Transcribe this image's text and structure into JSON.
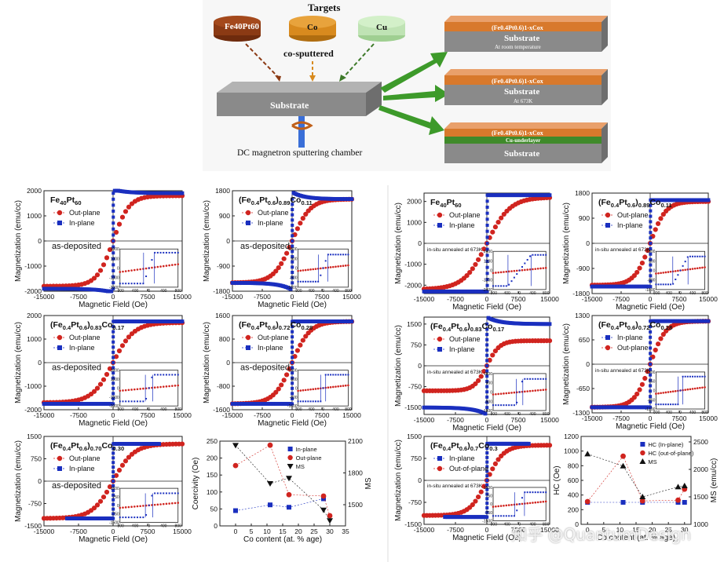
{
  "schematic": {
    "targets_title": "Targets",
    "target_fept": "Fe40Pt60",
    "target_co": "Co",
    "target_cu": "Cu",
    "cosputtered": "co-sputtered",
    "substrate": "Substrate",
    "chamber": "DC magnetron sputtering chamber",
    "stack1_film": "(Fe0.4Pt0.6)1-xCox",
    "stack1_sub": "Substrate",
    "stack1_note": "At room temperature",
    "stack2_film": "(Fe0.4Pt0.6)1-xCox",
    "stack2_sub": "Substrate",
    "stack2_note": "At 673K",
    "stack3_film": "(Fe0.4Pt0.6)1-xCox",
    "stack3_cu": "Cu-underlayer",
    "stack3_sub": "Substrate",
    "colors": {
      "fept": "#8b3a14",
      "co": "#d88a1e",
      "cu": "#bfe3b4",
      "film": "#d8792c",
      "substrate": "#8a8a8a",
      "cu_layer": "#3f8a2a",
      "arrow": "#3d9a2a"
    }
  },
  "watermark": "知乎 @QuantumDesign",
  "chart_data": [
    {
      "type": "scatter",
      "id": "L1",
      "title": "Fe40Pt60",
      "annotation": "as-deposited",
      "xlabel": "Magnetic Field (Oe)",
      "ylabel": "Magnetization (emu/cc)",
      "xlim": [
        -15000,
        15000
      ],
      "ylim": [
        -2000,
        2000
      ],
      "xticks": [
        -15000,
        -7500,
        0,
        7500,
        15000
      ],
      "yticks": [
        -2000,
        -1000,
        0,
        1000,
        2000
      ],
      "legend": [
        "Out-plane",
        "In-plane"
      ],
      "ms": 1800,
      "hc_out": 3500,
      "hc_in": 150,
      "in_sat": 1900,
      "in_overshoot": 2050,
      "inset": {
        "xlim": [
          -800,
          800
        ],
        "ylim": [
          -2000,
          2000
        ],
        "xticks": [
          -800,
          -400,
          0,
          400,
          800
        ],
        "yticks": [
          -2000,
          -1000,
          0,
          1000,
          2000
        ]
      }
    },
    {
      "type": "scatter",
      "id": "L2",
      "title": "(Fe0.4Pt0.6)0.89Co0.11",
      "annotation": "as-deposited",
      "xlabel": "Magnetic Field (Oe)",
      "ylabel": "Magnetization (emu/cc)",
      "xlim": [
        -15000,
        15000
      ],
      "ylim": [
        -1800,
        1800
      ],
      "xticks": [
        -15000,
        -7500,
        0,
        7500,
        15000
      ],
      "yticks": [
        -1800,
        -900,
        0,
        900,
        1800
      ],
      "legend": [
        "Out-plane",
        "In-plane"
      ],
      "ms": 1500,
      "hc_out": 4500,
      "hc_in": 150,
      "in_sat": 1500,
      "in_overshoot": 1750,
      "inset": {
        "xlim": [
          -800,
          800
        ],
        "ylim": [
          -1800,
          1800
        ],
        "xticks": [
          -800,
          -400,
          0,
          400,
          800
        ],
        "yticks": [
          -1800,
          -900,
          0,
          900,
          1800
        ]
      }
    },
    {
      "type": "scatter",
      "id": "L3",
      "title": "(Fe0.4Pt0.6)0.83Co0.17",
      "annotation": "as-deposited",
      "xlabel": "Magnetic Field (Oe)",
      "ylabel": "Magnetization (emu/cc)",
      "xlim": [
        -15000,
        15000
      ],
      "ylim": [
        -2000,
        2000
      ],
      "xticks": [
        -15000,
        -7500,
        0,
        7500,
        15000
      ],
      "yticks": [
        -2000,
        -1000,
        0,
        1000,
        2000
      ],
      "legend": [
        "Out-plane",
        "In-plane"
      ],
      "ms": 1700,
      "hc_out": 4500,
      "hc_in": 100,
      "in_sat": 1750,
      "in_overshoot": 1750,
      "inset": {
        "xlim": [
          -800,
          800
        ],
        "ylim": [
          -2000,
          2000
        ],
        "xticks": [
          -800,
          -400,
          0,
          400,
          800
        ],
        "yticks": [
          -2000,
          -1000,
          0,
          1000,
          2000
        ]
      }
    },
    {
      "type": "scatter",
      "id": "L4",
      "title": "(Fe0.4Pt0.6)0.72Co0.28",
      "annotation": "as-deposited",
      "xlabel": "Magnetic Field (Oe)",
      "ylabel": "Magnetization (emu/cc)",
      "xlim": [
        -15000,
        15000
      ],
      "ylim": [
        -1600,
        1600
      ],
      "xticks": [
        -15000,
        -7500,
        0,
        7500,
        15000
      ],
      "yticks": [
        -1600,
        -800,
        0,
        800,
        1600
      ],
      "legend": [
        "Out-plane",
        "In-plane"
      ],
      "ms": 1400,
      "hc_out": 4500,
      "hc_in": 80,
      "in_sat": 1400,
      "in_overshoot": 1400,
      "inset": {
        "xlim": [
          -800,
          800
        ],
        "ylim": [
          -1600,
          1600
        ],
        "xticks": [
          -800,
          -400,
          0,
          400,
          800
        ],
        "yticks": [
          -1600,
          -800,
          0,
          800,
          1600
        ]
      }
    },
    {
      "type": "scatter",
      "id": "L5",
      "title": "(Fe0.4Pt0.6)0.70Co0.30",
      "annotation": "as-deposited",
      "xlabel": "Magnetic Field (Oe)",
      "ylabel": "Magnetization (emu/cc)",
      "xlim": [
        -15000,
        15000
      ],
      "ylim": [
        -1500,
        1500
      ],
      "xticks": [
        -15000,
        -7500,
        0,
        7500,
        15000
      ],
      "yticks": [
        -1500,
        -750,
        0,
        750,
        1500
      ],
      "legend": [
        "Out-plane",
        "In-plane"
      ],
      "ms": 1250,
      "hc_out": 4500,
      "hc_in": 100,
      "in_sat": 1250,
      "in_overshoot": 1250,
      "in_xmax": 10000,
      "inset": {
        "xlim": [
          -800,
          800
        ],
        "ylim": [
          -1500,
          1500
        ],
        "xticks": [
          -800,
          -400,
          0,
          400,
          800
        ],
        "yticks": [
          -1500,
          -750,
          0,
          750,
          1500
        ]
      }
    },
    {
      "type": "line",
      "id": "L6",
      "xlabel": "Co content (at. % age)",
      "ylabel": "Coercivity (Oe)",
      "y2label": "MS",
      "xlim": [
        -5,
        35
      ],
      "ylim": [
        0,
        250
      ],
      "y2lim": [
        1300,
        2100
      ],
      "xticks": [
        0,
        5,
        10,
        15,
        20,
        25,
        30,
        35
      ],
      "yticks": [
        0,
        50,
        100,
        150,
        200,
        250
      ],
      "y2ticks": [
        1500,
        1800,
        2100
      ],
      "series": [
        {
          "name": "In-plane",
          "x": [
            0,
            11,
            17,
            28
          ],
          "y": [
            45,
            62,
            55,
            80
          ],
          "axis": "left",
          "color": "#1a2fbf",
          "marker": "square"
        },
        {
          "name": "Out-plane",
          "x": [
            0,
            11,
            17,
            28,
            30
          ],
          "y": [
            178,
            238,
            92,
            88,
            30
          ],
          "axis": "left",
          "color": "#d0241f",
          "marker": "circle"
        },
        {
          "name": "MS",
          "x": [
            0,
            11,
            17,
            28,
            30
          ],
          "y": [
            2060,
            1700,
            1750,
            1450,
            1350
          ],
          "axis": "right",
          "color": "#111",
          "marker": "triangle-down"
        }
      ],
      "legend_position": "top-right"
    },
    {
      "type": "scatter",
      "id": "R1",
      "title": "Fe40Pt60",
      "annotation": "in-situ annealed at 673K",
      "xlabel": "Magnetic Field (Oe)",
      "ylabel": "Magnetization (emu/cc)",
      "xlim": [
        -15000,
        15000
      ],
      "ylim": [
        -2400,
        2400
      ],
      "xticks": [
        -15000,
        -7500,
        0,
        7500,
        15000
      ],
      "yticks": [
        -2000,
        -1000,
        0,
        1000,
        2000
      ],
      "legend": [
        "Out-plane",
        "In-plane"
      ],
      "ms": 2200,
      "hc_out": 5500,
      "hc_in": 350,
      "in_sat": 2300,
      "in_overshoot": 2300,
      "inset": {
        "xlim": [
          -800,
          800
        ],
        "ylim": [
          -2400,
          2400
        ],
        "xticks": [
          -800,
          -400,
          0,
          400,
          800
        ],
        "yticks": [
          -2400,
          -1200,
          0,
          1200,
          2400
        ]
      }
    },
    {
      "type": "scatter",
      "id": "R2",
      "title": "(Fe0.4Pt0.6)0.89Co0.11",
      "annotation": "in-situ annealed at 673K",
      "xlabel": "Magnetic Field (Oe)",
      "ylabel": "Magnetization (emu/cc)",
      "xlim": [
        -15000,
        15000
      ],
      "ylim": [
        -1800,
        1800
      ],
      "xticks": [
        -15000,
        -7500,
        0,
        7500,
        15000
      ],
      "yticks": [
        -1800,
        -900,
        0,
        900,
        1800
      ],
      "legend": [
        "Out-plane",
        "In-plane"
      ],
      "ms": 1500,
      "hc_out": 4000,
      "hc_in": 250,
      "in_sat": 1550,
      "in_overshoot": 1550,
      "inset": {
        "xlim": [
          -800,
          800
        ],
        "ylim": [
          -1800,
          1800
        ],
        "xticks": [
          -800,
          -400,
          0,
          400,
          800
        ],
        "yticks": [
          -1800,
          -900,
          0,
          900,
          1800
        ]
      }
    },
    {
      "type": "scatter",
      "id": "R3",
      "title": "(Fe0.4Pt0.6)0.83Co0.17",
      "annotation": "in-situ annealed at 673K",
      "xlabel": "Magnetic Field (Oe)",
      "ylabel": "Magnetization (emu/cc)",
      "xlim": [
        -15000,
        15000
      ],
      "ylim": [
        -1750,
        1750
      ],
      "xticks": [
        -15000,
        -7500,
        0,
        7500,
        15000
      ],
      "yticks": [
        -1500,
        -750,
        0,
        750,
        1500
      ],
      "legend": [
        "Out-plane",
        "In-plane"
      ],
      "ms": 900,
      "hc_out": 3000,
      "hc_in": 100,
      "in_sat": 1500,
      "in_overshoot": 1750,
      "inset": {
        "xlim": [
          -800,
          800
        ],
        "ylim": [
          -1800,
          1800
        ],
        "xticks": [
          -800,
          -400,
          0,
          400,
          800
        ],
        "yticks": [
          -1800,
          -900,
          0,
          900,
          1800
        ]
      }
    },
    {
      "type": "scatter",
      "id": "R4",
      "title": "(Fe0.4Pt0.6)0.72Co0.28",
      "annotation": "in-situ annealed at 673K",
      "xlabel": "Magnetic Field (Oe)",
      "ylabel": "Magnetization (emu/cc)",
      "xlim": [
        -15000,
        15000
      ],
      "ylim": [
        -1300,
        1300
      ],
      "xticks": [
        -15000,
        -7500,
        0,
        7500,
        15000
      ],
      "yticks": [
        -1300,
        -650,
        0,
        650,
        1300
      ],
      "legend": [
        "In-plane",
        "Out-plane"
      ],
      "ms": 1150,
      "hc_out": 4000,
      "hc_in": 80,
      "in_sat": 1150,
      "in_overshoot": 1150,
      "inset": {
        "xlim": [
          -800,
          800
        ],
        "ylim": [
          -1300,
          1300
        ],
        "xticks": [
          -800,
          -400,
          0,
          400,
          800
        ],
        "yticks": [
          -1300,
          -650,
          0,
          650,
          1300
        ]
      }
    },
    {
      "type": "scatter",
      "id": "R5",
      "title": "(Fe0.4Pt0.6)0.7Co0.3",
      "annotation": "in-situ annealed at 673K",
      "xlabel": "Magnetic Field (Oe)",
      "ylabel": "Magnetization (emu/cc)",
      "xlim": [
        -15000,
        15000
      ],
      "ylim": [
        -1500,
        1500
      ],
      "xticks": [
        -15000,
        -7500,
        0,
        7500,
        15000
      ],
      "yticks": [
        -1500,
        -750,
        0,
        750,
        1500
      ],
      "legend": [
        "In-plane",
        "Out-of-plane"
      ],
      "ms": 1200,
      "hc_out": 4000,
      "hc_in": 150,
      "in_sat": 1250,
      "in_overshoot": 1250,
      "in_xmax": 10000,
      "inset": {
        "xlim": [
          -800,
          800
        ],
        "ylim": [
          -1500,
          1500
        ],
        "xticks": [
          -800,
          -400,
          0,
          400,
          800
        ],
        "yticks": [
          -1500,
          -750,
          0,
          750,
          1500
        ]
      }
    },
    {
      "type": "line",
      "id": "R6",
      "xlabel": "Co content (at. % age)",
      "ylabel": "HC (Oe)",
      "y2label": "MS (emu/cc)",
      "xlim": [
        -2,
        32
      ],
      "ylim": [
        0,
        1200
      ],
      "y2lim": [
        1000,
        2600
      ],
      "xticks": [
        0,
        5,
        10,
        15,
        20,
        25,
        30
      ],
      "yticks": [
        0,
        200,
        400,
        600,
        800,
        1000,
        1200
      ],
      "y2ticks": [
        1000,
        1500,
        2000,
        2500
      ],
      "series": [
        {
          "name": "HC (In-plane)",
          "x": [
            0,
            11,
            17,
            28,
            30
          ],
          "y": [
            300,
            300,
            300,
            300,
            300
          ],
          "axis": "left",
          "color": "#1a2fbf",
          "marker": "square"
        },
        {
          "name": "HC (out-of-plane)",
          "x": [
            0,
            11,
            17,
            28,
            30
          ],
          "y": [
            310,
            930,
            320,
            330,
            480
          ],
          "axis": "left",
          "color": "#d0241f",
          "marker": "circle"
        },
        {
          "name": "MS",
          "x": [
            0,
            11,
            17,
            28,
            30
          ],
          "y": [
            2280,
            2060,
            1500,
            1680,
            1700
          ],
          "axis": "right",
          "color": "#111",
          "marker": "triangle-up"
        }
      ],
      "legend_position": "top-right"
    }
  ]
}
